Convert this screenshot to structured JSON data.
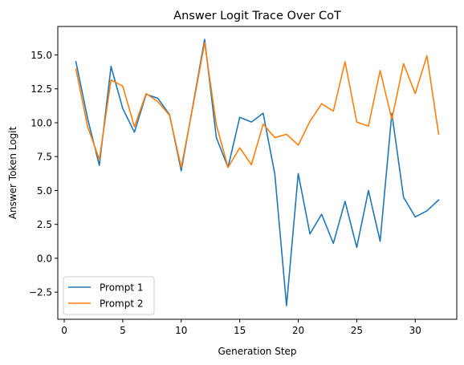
{
  "chart_data": {
    "type": "line",
    "title": "Answer Logit Trace Over CoT",
    "xlabel": "Generation Step",
    "ylabel": "Answer Token Logit",
    "xlim": [
      -0.55,
      33.55
    ],
    "ylim": [
      -4.5,
      17.1
    ],
    "xticks": [
      0,
      5,
      10,
      15,
      20,
      25,
      30
    ],
    "xtick_labels": [
      "0",
      "5",
      "10",
      "15",
      "20",
      "25",
      "30"
    ],
    "yticks": [
      -2.5,
      0.0,
      2.5,
      5.0,
      7.5,
      10.0,
      12.5,
      15.0
    ],
    "ytick_labels": [
      "−2.5",
      "0.0",
      "2.5",
      "5.0",
      "7.5",
      "10.0",
      "12.5",
      "15.0"
    ],
    "grid": false,
    "legend_position": "lower-left",
    "x": [
      1,
      2,
      3,
      4,
      5,
      6,
      7,
      8,
      9,
      10,
      11,
      12,
      13,
      14,
      15,
      16,
      17,
      18,
      19,
      20,
      21,
      22,
      23,
      24,
      25,
      26,
      27,
      28,
      29,
      30,
      31,
      32
    ],
    "series": [
      {
        "name": "Prompt 1",
        "color": "#1f77b4",
        "values": [
          14.5,
          10.3,
          6.85,
          14.15,
          11.05,
          9.3,
          12.1,
          11.8,
          10.6,
          6.45,
          11.3,
          16.15,
          8.9,
          6.7,
          10.4,
          10.05,
          10.7,
          6.2,
          -3.5,
          6.25,
          1.8,
          3.25,
          1.1,
          4.2,
          0.8,
          5.0,
          1.25,
          10.7,
          4.5,
          3.05,
          3.5,
          4.3
        ]
      },
      {
        "name": "Prompt 2",
        "color": "#ff7f0e",
        "values": [
          13.95,
          9.7,
          7.3,
          13.15,
          12.7,
          9.7,
          12.15,
          11.55,
          10.55,
          6.7,
          11.2,
          15.9,
          9.85,
          6.7,
          8.15,
          6.9,
          9.9,
          8.9,
          9.15,
          8.35,
          10.1,
          11.4,
          10.85,
          14.5,
          10.05,
          9.75,
          13.85,
          10.25,
          14.35,
          12.15,
          14.95,
          9.15
        ]
      }
    ]
  }
}
